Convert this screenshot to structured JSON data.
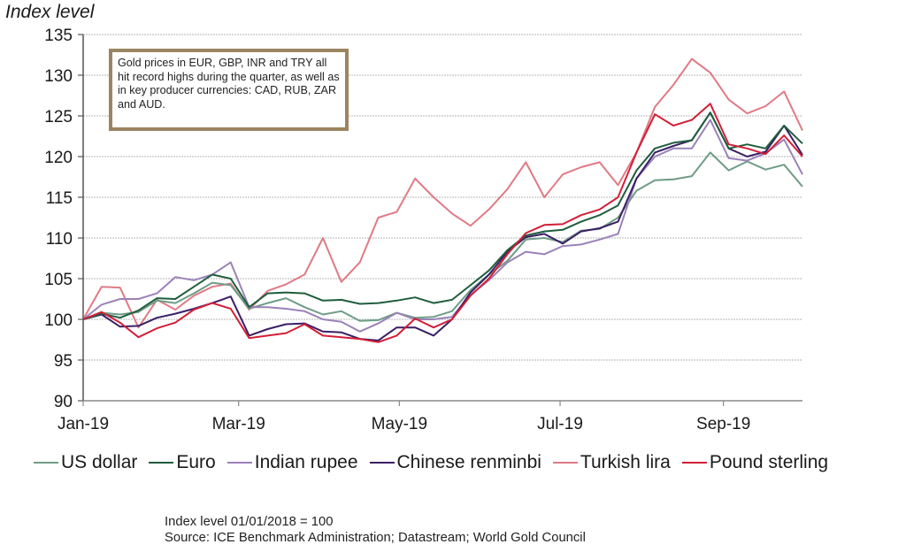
{
  "chart_data": {
    "type": "line",
    "title": "",
    "ylabel": "Index level",
    "xlabel": "",
    "ylim": [
      90,
      135
    ],
    "yticks": [
      90,
      95,
      100,
      105,
      110,
      115,
      120,
      125,
      130,
      135
    ],
    "xticks": [
      {
        "label": "Jan-19",
        "day": 0
      },
      {
        "label": "Mar-19",
        "day": 59
      },
      {
        "label": "May-19",
        "day": 120
      },
      {
        "label": "Jul-19",
        "day": 181
      },
      {
        "label": "Sep-19",
        "day": 243
      }
    ],
    "xlim_days": [
      0,
      273
    ],
    "grid": true,
    "legend_position": "bottom",
    "x_days": [
      0,
      7,
      14,
      21,
      28,
      35,
      42,
      49,
      56,
      63,
      70,
      77,
      84,
      91,
      98,
      105,
      112,
      119,
      126,
      133,
      140,
      147,
      154,
      161,
      168,
      175,
      182,
      189,
      196,
      203,
      210,
      217,
      224,
      231,
      238,
      245,
      252,
      259,
      266,
      273
    ],
    "series": [
      {
        "name": "US dollar",
        "color": "#6f9c86",
        "values": [
          100,
          100.8,
          100.6,
          100.9,
          102.3,
          102.0,
          103.2,
          104.5,
          104.2,
          101.3,
          102.0,
          102.6,
          101.5,
          100.6,
          101.0,
          99.8,
          99.9,
          100.8,
          100.2,
          100.3,
          101.0,
          103.6,
          105.5,
          107.2,
          109.8,
          110.0,
          109.5,
          110.9,
          111.1,
          112.5,
          115.8,
          117.1,
          117.2,
          117.6,
          120.5,
          118.3,
          119.4,
          118.4,
          119.0,
          116.3
        ]
      },
      {
        "name": "Euro",
        "color": "#1f5e3d",
        "values": [
          100,
          100.7,
          100.2,
          101.1,
          102.6,
          102.5,
          104.0,
          105.5,
          105.0,
          101.5,
          103.2,
          103.3,
          103.2,
          102.3,
          102.4,
          101.9,
          102.0,
          102.3,
          102.7,
          102.0,
          102.4,
          104.2,
          106.0,
          108.5,
          110.3,
          110.8,
          111.0,
          112.0,
          112.8,
          114.0,
          118.3,
          121.0,
          121.7,
          122.0,
          125.4,
          121.0,
          121.5,
          121.0,
          123.8,
          121.6
        ]
      },
      {
        "name": "Indian rupee",
        "color": "#9b82b8",
        "values": [
          100,
          101.8,
          102.5,
          102.5,
          103.2,
          105.2,
          104.8,
          105.5,
          107.0,
          101.5,
          101.5,
          101.3,
          101.0,
          100.0,
          99.7,
          98.5,
          99.5,
          100.8,
          100.0,
          100.0,
          100.3,
          103.0,
          104.8,
          107.0,
          108.3,
          108.0,
          109.0,
          109.2,
          109.8,
          110.5,
          117.3,
          120.0,
          121.0,
          121.0,
          124.5,
          119.8,
          119.5,
          120.4,
          122.1,
          117.8
        ]
      },
      {
        "name": "Chinese renminbi",
        "color": "#3a1f66",
        "values": [
          100,
          100.6,
          99.1,
          99.2,
          100.2,
          100.7,
          101.3,
          102.0,
          102.8,
          98.0,
          98.8,
          99.4,
          99.5,
          98.5,
          98.4,
          97.6,
          97.4,
          99.0,
          99.0,
          98.0,
          100.0,
          103.3,
          105.5,
          108.3,
          110.1,
          110.5,
          109.3,
          110.8,
          111.2,
          112.0,
          117.3,
          120.5,
          121.3,
          122.0,
          125.4,
          121.0,
          120.0,
          120.6,
          123.8,
          120.2
        ]
      },
      {
        "name": "Turkish lira",
        "color": "#e07a85",
        "values": [
          100,
          104.0,
          103.9,
          99.0,
          102.4,
          101.2,
          102.9,
          104.0,
          104.4,
          101.2,
          103.5,
          104.3,
          105.5,
          110.0,
          104.6,
          107.0,
          112.5,
          113.2,
          117.3,
          115.0,
          113.0,
          111.5,
          113.5,
          116.0,
          119.3,
          115.0,
          117.8,
          118.7,
          119.3,
          116.5,
          120.5,
          126.1,
          128.8,
          132.0,
          130.3,
          127.0,
          125.3,
          126.2,
          128.0,
          123.2
        ]
      },
      {
        "name": "Pound sterling",
        "color": "#d21f37",
        "values": [
          100,
          100.9,
          99.6,
          97.8,
          98.9,
          99.6,
          101.2,
          102.0,
          101.3,
          97.7,
          98.0,
          98.3,
          99.4,
          98.0,
          97.8,
          97.6,
          97.2,
          98.0,
          100.1,
          99.0,
          100.0,
          102.9,
          105.0,
          108.0,
          110.6,
          111.6,
          111.7,
          112.8,
          113.5,
          115.0,
          120.5,
          125.2,
          123.8,
          124.5,
          126.5,
          121.5,
          121.0,
          120.3,
          122.6,
          120.0
        ]
      }
    ]
  },
  "axis_title": "Index level",
  "annotation": "Gold prices in EUR, GBP, INR and TRY all hit record highs during the quarter, as well as in key producer currencies: CAD, RUB, ZAR and AUD.",
  "footnotes": {
    "base_note": "Index level 01/01/2018 = 100",
    "source": "Source: ICE Benchmark Administration; Datastream; World Gold Council"
  }
}
